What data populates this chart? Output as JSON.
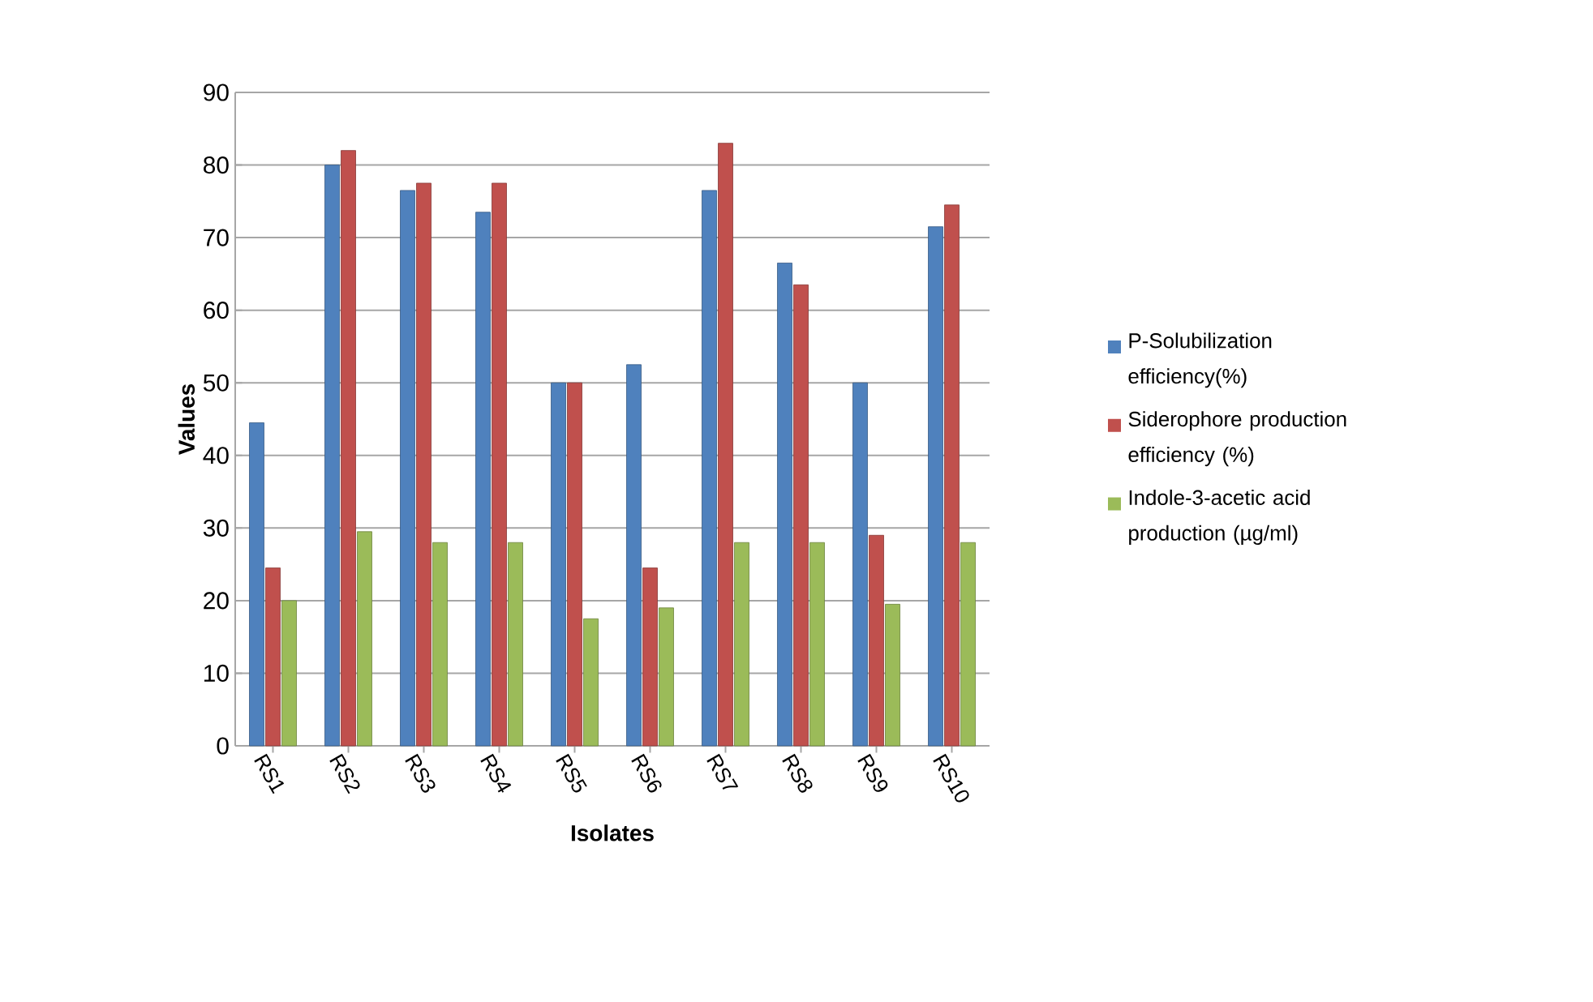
{
  "chart_data": {
    "type": "bar",
    "xlabel": "Isolates",
    "ylabel": "Values",
    "categories": [
      "RS1",
      "RS2",
      "RS3",
      "RS4",
      "RS5",
      "RS6",
      "RS7",
      "RS8",
      "RS9",
      "RS10"
    ],
    "series": [
      {
        "name": "P-Solubilization efficiency(%)",
        "color": "#4f81bd",
        "values": [
          44.5,
          80,
          76.5,
          73.5,
          50,
          52.5,
          76.5,
          66.5,
          50,
          71.5
        ]
      },
      {
        "name": "Siderophore  production efficiency (%)",
        "color": "#c0504d",
        "values": [
          24.5,
          82,
          77.5,
          77.5,
          50,
          24.5,
          83,
          63.5,
          29,
          74.5
        ]
      },
      {
        "name": "Indole-3-acetic acid production (µg/ml)",
        "color": "#9bbb59",
        "values": [
          20,
          29.5,
          28,
          28,
          17.5,
          19,
          28,
          28,
          19.5,
          28
        ]
      }
    ],
    "ylim": [
      0,
      90
    ],
    "yticks": [
      0,
      10,
      20,
      30,
      40,
      50,
      60,
      70,
      80,
      90
    ],
    "grid": "y",
    "legend": "right"
  }
}
